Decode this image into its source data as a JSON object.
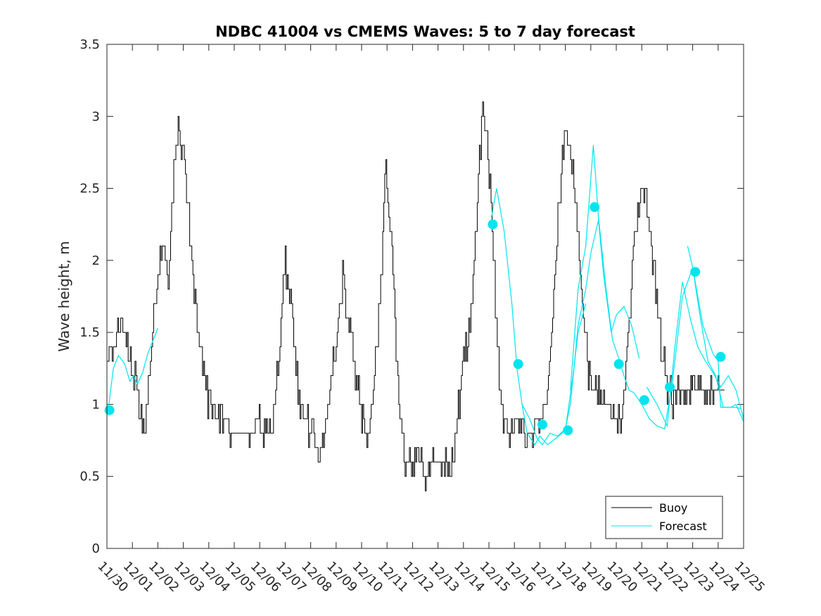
{
  "chart_data": {
    "type": "line",
    "title": "NDBC 41004 vs CMEMS Waves: 5 to 7 day forecast",
    "xlabel": "",
    "ylabel": "Wave height, m",
    "xlim": [
      0,
      25
    ],
    "ylim": [
      0,
      3.5
    ],
    "x_tick_labels": [
      "11/30",
      "12/01",
      "12/02",
      "12/03",
      "12/04",
      "12/05",
      "12/06",
      "12/07",
      "12/08",
      "12/09",
      "12/10",
      "12/11",
      "12/12",
      "12/13",
      "12/14",
      "12/15",
      "12/16",
      "12/17",
      "12/18",
      "12/19",
      "12/20",
      "12/21",
      "12/22",
      "12/23",
      "12/24",
      "12/25"
    ],
    "y_ticks": [
      0,
      0.5,
      1,
      1.5,
      2,
      2.5,
      3,
      3.5
    ],
    "y_tick_labels": [
      "0",
      "0.5",
      "1",
      "1.5",
      "2",
      "2.5",
      "3",
      "3.5"
    ],
    "legend": {
      "location": "bottom-right",
      "entries": [
        "Buoy",
        "Forecast"
      ]
    },
    "series": [
      {
        "name": "Buoy",
        "color": "#000000",
        "style": "step-line",
        "x": [
          0,
          0.25,
          0.5,
          0.75,
          1.0,
          1.1,
          1.3,
          1.5,
          1.75,
          2.0,
          2.25,
          2.4,
          2.5,
          2.75,
          3.0,
          3.25,
          3.5,
          3.75,
          4.0,
          4.5,
          5.0,
          5.25,
          5.5,
          5.75,
          5.9,
          6.1,
          6.3,
          6.5,
          6.75,
          7.0,
          7.25,
          7.5,
          7.75,
          8.0,
          8.25,
          8.5,
          8.75,
          9.0,
          9.25,
          9.5,
          9.75,
          10.0,
          10.25,
          10.5,
          10.75,
          10.95,
          11.15,
          11.35,
          11.5,
          11.75,
          12.0,
          12.25,
          12.5,
          12.75,
          13.0,
          13.25,
          13.5,
          13.75,
          14.0,
          14.25,
          14.5,
          14.75,
          15.0,
          15.25,
          15.4,
          15.6,
          15.8,
          16.0,
          16.25,
          16.5,
          16.75,
          17.0,
          17.25,
          17.5,
          17.75,
          18.0,
          18.25,
          18.5,
          18.75,
          18.9,
          19.1,
          19.3,
          19.5,
          19.75,
          20.0,
          20.25,
          20.5,
          20.75,
          21.0,
          21.25,
          21.5,
          21.75,
          22.0,
          22.25,
          22.5,
          22.65,
          22.85,
          23.0,
          23.25,
          23.5,
          23.75,
          24.0,
          24.25
        ],
        "y": [
          1.3,
          1.4,
          1.6,
          1.4,
          1.2,
          1.2,
          1.0,
          0.8,
          1.4,
          1.9,
          2.1,
          1.8,
          2.2,
          2.9,
          2.8,
          2.2,
          1.6,
          1.2,
          1.0,
          0.9,
          0.8,
          0.8,
          0.8,
          0.8,
          0.9,
          0.8,
          0.8,
          0.9,
          1.3,
          2.0,
          1.6,
          1.1,
          0.9,
          0.8,
          0.7,
          0.7,
          1.1,
          1.4,
          1.9,
          1.5,
          1.2,
          0.9,
          0.7,
          1.2,
          1.9,
          2.6,
          2.1,
          1.4,
          0.9,
          0.6,
          0.6,
          0.6,
          0.5,
          0.6,
          0.6,
          0.6,
          0.5,
          0.9,
          1.3,
          1.5,
          2.3,
          3.1,
          2.6,
          1.7,
          1.1,
          0.9,
          0.8,
          0.8,
          0.8,
          0.8,
          0.8,
          0.9,
          1.0,
          1.6,
          2.4,
          2.9,
          2.7,
          2.1,
          1.5,
          1.2,
          1.1,
          1.1,
          1.0,
          1.0,
          0.9,
          0.9,
          1.6,
          2.3,
          2.5,
          2.3,
          1.9,
          1.4,
          1.1,
          1.0,
          1.1,
          1.1,
          1.1,
          1.1,
          1.1,
          1.1,
          1.1,
          1.1,
          1.1
        ]
      },
      {
        "name": "Forecast",
        "color": "#00e5ee",
        "style": "line",
        "segments": [
          {
            "x": [
              0.05,
              0.25,
              0.45,
              0.7,
              0.9,
              1.05,
              1.2,
              1.4,
              1.6,
              1.8,
              2.0
            ],
            "y": [
              0.96,
              1.25,
              1.34,
              1.28,
              1.16,
              1.2,
              1.14,
              1.22,
              1.35,
              1.44,
              1.53
            ]
          },
          {
            "x": [
              15.1,
              15.3,
              15.6,
              15.9,
              16.1,
              16.3,
              16.5,
              16.8,
              17.0,
              17.3,
              17.6,
              18.0,
              18.3,
              18.5,
              18.8
            ],
            "y": [
              2.3,
              2.5,
              2.2,
              1.7,
              1.25,
              1.0,
              0.8,
              0.72,
              0.78,
              0.72,
              0.76,
              0.82,
              1.2,
              1.5,
              1.7
            ]
          },
          {
            "x": [
              16.3,
              16.6,
              16.9,
              17.1,
              17.4,
              17.7,
              18.0,
              18.2,
              18.5,
              18.8,
              19.0,
              19.3,
              19.5,
              19.8,
              20.0,
              20.3,
              20.6,
              20.9
            ],
            "y": [
              1.0,
              0.9,
              0.76,
              0.72,
              0.8,
              0.78,
              0.83,
              1.0,
              1.55,
              1.8,
              2.05,
              2.28,
              1.9,
              1.5,
              1.62,
              1.68,
              1.55,
              1.32
            ]
          },
          {
            "x": [
              18.2,
              18.5,
              18.8,
              19.1,
              19.3,
              19.6,
              19.85,
              20.1,
              20.3,
              20.5,
              20.7,
              21.0,
              21.3,
              21.6,
              21.9,
              22.2,
              22.6,
              23.0,
              23.3,
              23.6,
              23.9,
              24.2,
              24.5,
              24.7,
              25.0
            ],
            "y": [
              1.1,
              1.8,
              2.1,
              2.8,
              2.3,
              1.8,
              1.45,
              1.32,
              1.2,
              1.1,
              1.08,
              1.0,
              0.9,
              0.85,
              0.83,
              1.15,
              1.75,
              1.95,
              1.6,
              1.3,
              1.2,
              0.98,
              0.98,
              1.0,
              0.88
            ]
          },
          {
            "x": [
              21.2,
              21.6,
              22.0,
              22.3,
              22.6,
              22.9,
              23.2,
              23.5,
              23.8,
              24.1,
              24.4,
              24.7,
              25.0
            ],
            "y": [
              1.12,
              1.0,
              0.85,
              1.4,
              1.85,
              1.6,
              1.4,
              1.3,
              1.22,
              1.12,
              1.2,
              1.1,
              0.9
            ]
          },
          {
            "x": [
              22.8,
              23.0,
              23.2,
              23.4,
              23.6,
              23.8
            ],
            "y": [
              2.1,
              1.95,
              1.75,
              1.55,
              1.45,
              1.35
            ]
          },
          {
            "x": [
              23.8,
              24.0,
              24.1,
              24.3,
              24.5,
              24.7,
              24.9
            ],
            "y": [
              1.35,
              1.3,
              0.98,
              0.98,
              0.98,
              0.98,
              0.97
            ]
          }
        ],
        "markers": {
          "x": [
            0.1,
            15.15,
            16.15,
            17.1,
            18.1,
            19.15,
            20.1,
            21.1,
            22.1,
            23.1,
            24.1
          ],
          "y": [
            0.96,
            2.25,
            1.28,
            0.86,
            0.82,
            2.37,
            1.28,
            1.03,
            1.12,
            1.92,
            1.33
          ]
        }
      }
    ]
  }
}
